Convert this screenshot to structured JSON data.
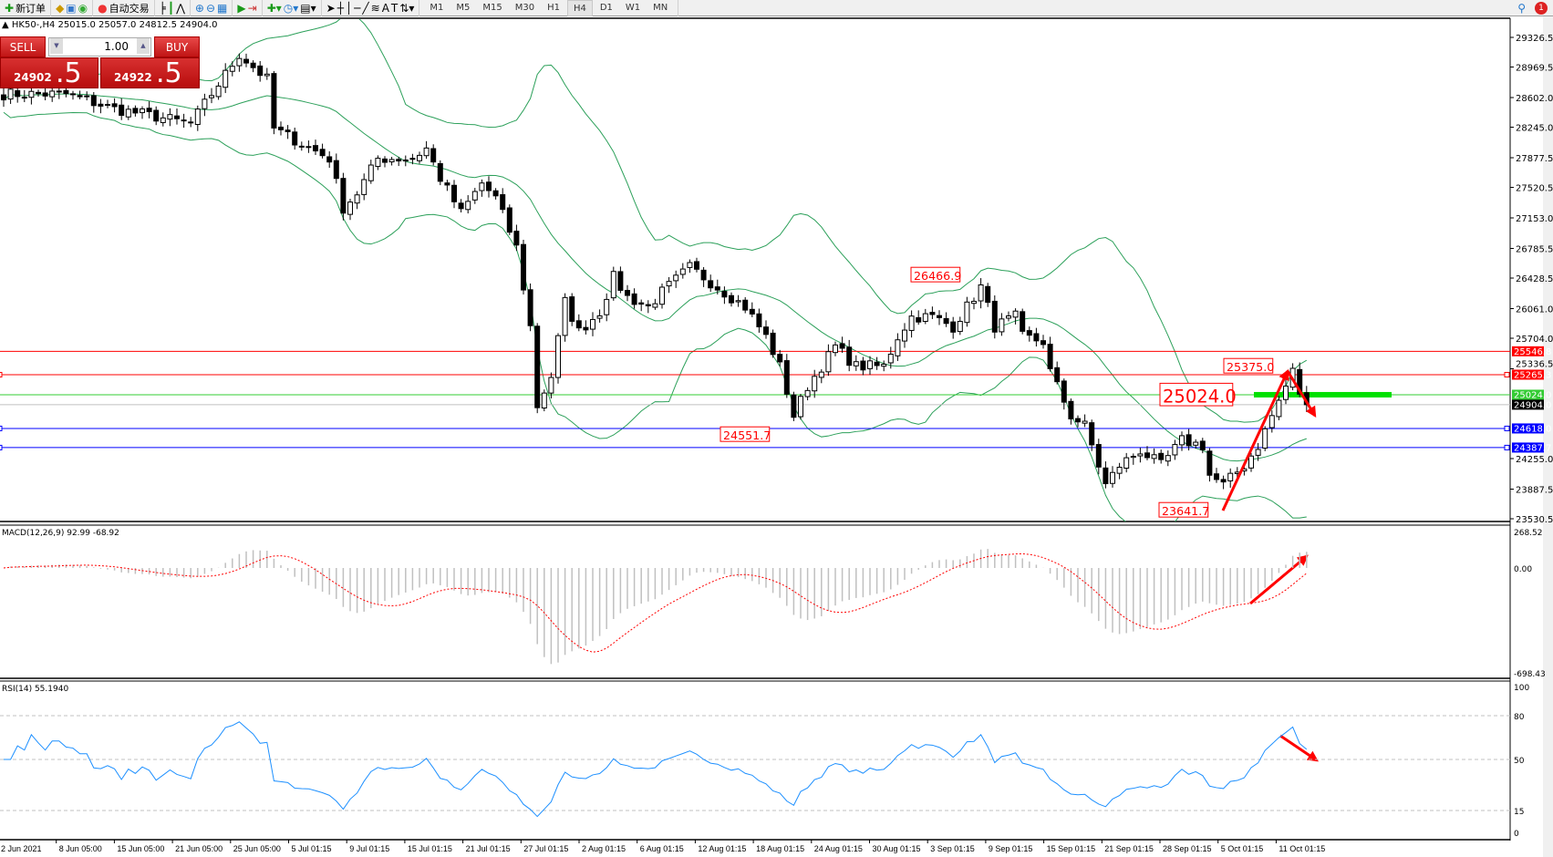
{
  "toolbar": {
    "new_order": "新订单",
    "auto_trading": "自动交易",
    "timeframes": [
      "M1",
      "M5",
      "M15",
      "M30",
      "H1",
      "H4",
      "D1",
      "W1",
      "MN"
    ],
    "active_timeframe": "H4",
    "tools": [
      "cursor-icon",
      "crosshair-icon",
      "vertical-line-icon",
      "horizontal-line-icon",
      "trendline-icon",
      "fibonacci-icon",
      "text-icon",
      "text-label-icon"
    ]
  },
  "header": {
    "text": "HK50-,H4  25015.0 25057.0 24812.5 24904.0"
  },
  "trade_panel": {
    "sell": "SELL",
    "buy": "BUY",
    "lot": "1.00",
    "sell_price_main": "24902",
    "sell_price_big": ".5",
    "buy_price_main": "24922",
    "buy_price_big": ".5"
  },
  "price_axis": [
    "29326.5",
    "28969.5",
    "28602.0",
    "28245.0",
    "27877.5",
    "27520.5",
    "27153.0",
    "26785.5",
    "26428.5",
    "26061.0",
    "25704.0",
    "25336.5",
    "24255.0",
    "23887.5",
    "23530.5"
  ],
  "levels": [
    {
      "price": "25546.8",
      "color": "#ff0000"
    },
    {
      "price": "25265.3",
      "color": "#ff0000"
    },
    {
      "price": "25024.0",
      "color": "#33cc33"
    },
    {
      "price": "24904.0",
      "color": "#000000",
      "line": "#c0c0c0"
    },
    {
      "price": "24618.0",
      "color": "#0000ff"
    },
    {
      "price": "24387.7",
      "color": "#0000ff"
    }
  ],
  "annotations": [
    "26466.9",
    "24551.7",
    "25375.0",
    "25024.0",
    "23641.7"
  ],
  "closes_waypoints": [
    [
      0,
      28644
    ],
    [
      9,
      28644
    ],
    [
      16,
      28465
    ],
    [
      20,
      28406
    ],
    [
      27,
      28287
    ],
    [
      30,
      28644
    ],
    [
      34,
      29121
    ],
    [
      38,
      28823
    ],
    [
      39,
      28227
    ],
    [
      43,
      28048
    ],
    [
      47,
      27869
    ],
    [
      49,
      27273
    ],
    [
      51,
      27452
    ],
    [
      54,
      27869
    ],
    [
      59,
      27869
    ],
    [
      61,
      27990
    ],
    [
      63,
      27631
    ],
    [
      66,
      27214
    ],
    [
      69,
      27571
    ],
    [
      71,
      27392
    ],
    [
      74,
      26797
    ],
    [
      76,
      25843
    ],
    [
      77,
      24889
    ],
    [
      79,
      25247
    ],
    [
      81,
      26141
    ],
    [
      83,
      25784
    ],
    [
      86,
      26022
    ],
    [
      88,
      26439
    ],
    [
      90,
      26201
    ],
    [
      93,
      26081
    ],
    [
      95,
      26260
    ],
    [
      99,
      26558
    ],
    [
      101,
      26439
    ],
    [
      104,
      26260
    ],
    [
      107,
      26081
    ],
    [
      110,
      25724
    ],
    [
      112,
      25366
    ],
    [
      114,
      24770
    ],
    [
      116,
      25128
    ],
    [
      117,
      25247
    ],
    [
      120,
      25604
    ],
    [
      123,
      25366
    ],
    [
      127,
      25366
    ],
    [
      129,
      25724
    ],
    [
      131,
      25962
    ],
    [
      134,
      25962
    ],
    [
      137,
      25843
    ],
    [
      139,
      26081
    ],
    [
      141,
      26320
    ],
    [
      143,
      25843
    ],
    [
      146,
      25962
    ],
    [
      147,
      25724
    ],
    [
      150,
      25664
    ],
    [
      151,
      25306
    ],
    [
      154,
      24770
    ],
    [
      156,
      24651
    ],
    [
      157,
      24412
    ],
    [
      159,
      23936
    ],
    [
      161,
      24174
    ],
    [
      164,
      24353
    ],
    [
      167,
      24174
    ],
    [
      170,
      24472
    ],
    [
      173,
      24412
    ],
    [
      174,
      24055
    ],
    [
      176,
      23936
    ],
    [
      179,
      24174
    ],
    [
      181,
      24412
    ],
    [
      183,
      24770
    ],
    [
      186,
      25306
    ],
    [
      187,
      25050
    ],
    [
      188,
      24904
    ]
  ],
  "macd": {
    "label": "MACD(12,26,9) 92.99 -68.92",
    "axis": [
      "268.52",
      "0.00",
      "-698.43"
    ]
  },
  "rsi": {
    "label": "RSI(14) 55.1940",
    "axis": [
      "100",
      "80",
      "50",
      "15",
      "0"
    ]
  },
  "time_axis": [
    "2 Jun 2021",
    "8 Jun 05:00",
    "15 Jun 05:00",
    "21 Jun 05:00",
    "25 Jun 05:00",
    "5 Jul 01:15",
    "9 Jul 01:15",
    "15 Jul 01:15",
    "21 Jul 01:15",
    "27 Jul 01:15",
    "2 Aug 01:15",
    "6 Aug 01:15",
    "12 Aug 01:15",
    "18 Aug 01:15",
    "24 Aug 01:15",
    "30 Aug 01:15",
    "3 Sep 01:15",
    "9 Sep 01:15",
    "15 Sep 01:15",
    "21 Sep 01:15",
    "28 Sep 01:15",
    "5 Oct 01:15",
    "11 Oct 01:15"
  ],
  "colors": {
    "bands": "#2ca05a",
    "annotation": "#ff0000",
    "macd_hist": "#c0c0c0",
    "rsi": "#1e90ff",
    "target_bar": "#00e000"
  }
}
